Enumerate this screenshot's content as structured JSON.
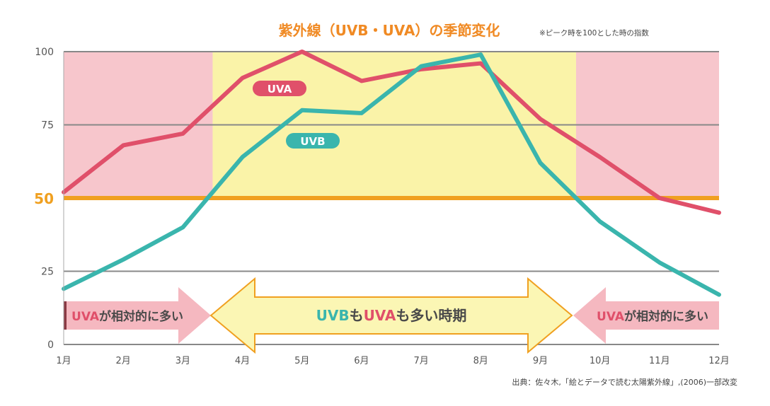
{
  "chart_data": {
    "type": "line",
    "title": "紫外線（UVB・UVA）の季節変化",
    "note": "※ピーク時を100とした時の指数",
    "source": "出典：佐々木,「絵とデータで読む太陽紫外線」,(2006)一部改変",
    "categories": [
      "1月",
      "2月",
      "3月",
      "4月",
      "5月",
      "6月",
      "7月",
      "8月",
      "9月",
      "10月",
      "11月",
      "12月"
    ],
    "y_ticks": [
      "0",
      "25",
      "50",
      "75",
      "100"
    ],
    "ylim": [
      0,
      100
    ],
    "grid": true,
    "reference_line": {
      "value": 50,
      "label": "50",
      "color": "#f0a020"
    },
    "series": [
      {
        "name": "UVA",
        "color": "#e0506a",
        "values": [
          52,
          68,
          72,
          91,
          100,
          90,
          94,
          96,
          77,
          64,
          50,
          45
        ]
      },
      {
        "name": "UVB",
        "color": "#3ab5ad",
        "values": [
          19,
          29,
          40,
          64,
          80,
          79,
          95,
          99,
          62,
          42,
          28,
          17
        ]
      }
    ],
    "bands": [
      {
        "from_month": 1,
        "to_month": 3.5,
        "color": "#f7c6cc"
      },
      {
        "from_month": 3.5,
        "to_month": 9.6,
        "color": "#faf3a8"
      },
      {
        "from_month": 9.6,
        "to_month": 12,
        "color": "#f7c6cc"
      }
    ],
    "arrows": [
      {
        "type": "left",
        "parts": [
          {
            "text": "UVA",
            "color": "#e0506a"
          },
          {
            "text": "が相対的に多い",
            "color": "#4a4a4a"
          }
        ]
      },
      {
        "type": "center",
        "parts": [
          {
            "text": "UVB",
            "color": "#3ab5ad"
          },
          {
            "text": "も",
            "color": "#4a4a4a"
          },
          {
            "text": "UVA",
            "color": "#e0506a"
          },
          {
            "text": "も多い時期",
            "color": "#4a4a4a"
          }
        ]
      },
      {
        "type": "right",
        "parts": [
          {
            "text": "UVA",
            "color": "#e0506a"
          },
          {
            "text": "が相対的に多い",
            "color": "#4a4a4a"
          }
        ]
      }
    ],
    "colors": {
      "title": "#f08a24",
      "axis_text": "#555555",
      "grid": "#888888",
      "pink_arrow": "#f5b8c0",
      "yellow_arrow": "#fbf6b4",
      "yellow_arrow_stroke": "#f0a020",
      "dark_bar": "#8a3a44"
    }
  }
}
